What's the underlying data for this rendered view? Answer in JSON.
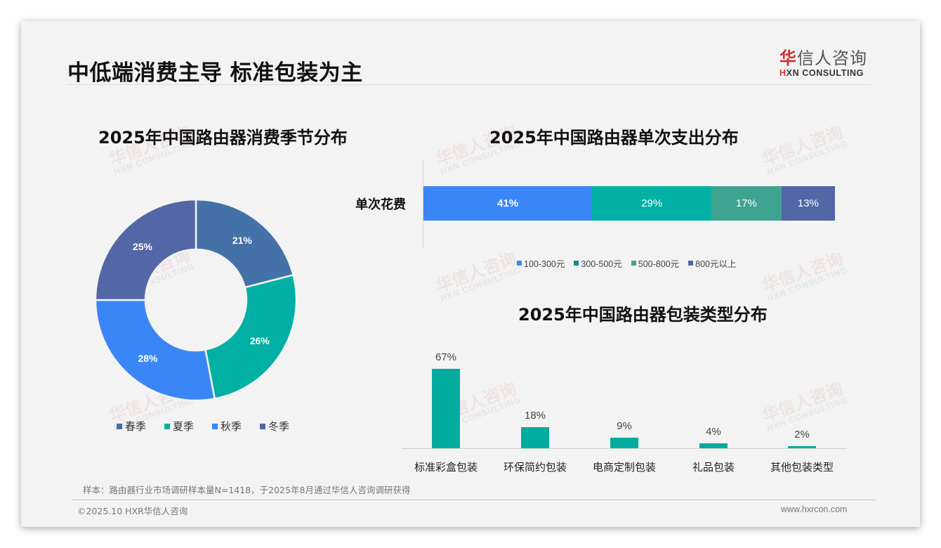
{
  "page": {
    "title": "中低端消费主导 标准包装为主",
    "logo": {
      "cn_accent": "华",
      "cn_rest": "信人咨询",
      "en_accent": "H",
      "en_rest": "XN CONSULTING"
    },
    "watermark": {
      "cn": "华信人咨询",
      "en": "HXN CONSULTING"
    },
    "note": "样本：路由器行业市场调研样本量N=1418，于2025年8月通过华信人咨询调研获得",
    "footer_left": "©2025.10 HXR华信人咨询",
    "footer_right": "www.hxrcon.com"
  },
  "colors": {
    "spring": "#4472a8",
    "summer": "#00b0a4",
    "autumn": "#3b86f7",
    "winter": "#5366a6",
    "r100_300": "#3b86f7",
    "r300_500": "#00b0a4",
    "r500_800": "#3fa48f",
    "r800_plus": "#5366a6",
    "column": "#00ab9f",
    "card_bg": "#f3f3f3"
  },
  "chart_data": [
    {
      "type": "pie",
      "subtype": "donut",
      "title": "2025年中国路由器消费季节分布",
      "categories": [
        "春季",
        "夏季",
        "秋季",
        "冬季"
      ],
      "values": [
        21,
        26,
        28,
        25
      ],
      "labels": [
        "21%",
        "26%",
        "28%",
        "25%"
      ],
      "unit": "%",
      "legend_position": "bottom"
    },
    {
      "type": "bar",
      "subtype": "stacked-horizontal-100",
      "title": "2025年中国路由器单次支出分布",
      "categories": [
        "单次花费"
      ],
      "series": [
        {
          "name": "100-300元",
          "values": [
            41
          ],
          "label": "41%"
        },
        {
          "name": "300-500元",
          "values": [
            29
          ],
          "label": "29%"
        },
        {
          "name": "500-800元",
          "values": [
            17
          ],
          "label": "17%"
        },
        {
          "name": "800元以上",
          "values": [
            13
          ],
          "label": "13%"
        }
      ],
      "unit": "%",
      "legend_position": "bottom",
      "grid": false
    },
    {
      "type": "bar",
      "title": "2025年中国路由器包装类型分布",
      "categories": [
        "标准彩盒包装",
        "环保简约包装",
        "电商定制包装",
        "礼品包装",
        "其他包装类型"
      ],
      "values": [
        67,
        18,
        9,
        4,
        2
      ],
      "labels": [
        "67%",
        "18%",
        "9%",
        "4%",
        "2%"
      ],
      "unit": "%",
      "xlabel": "",
      "ylabel": "",
      "grid": false,
      "legend_position": "none"
    }
  ]
}
